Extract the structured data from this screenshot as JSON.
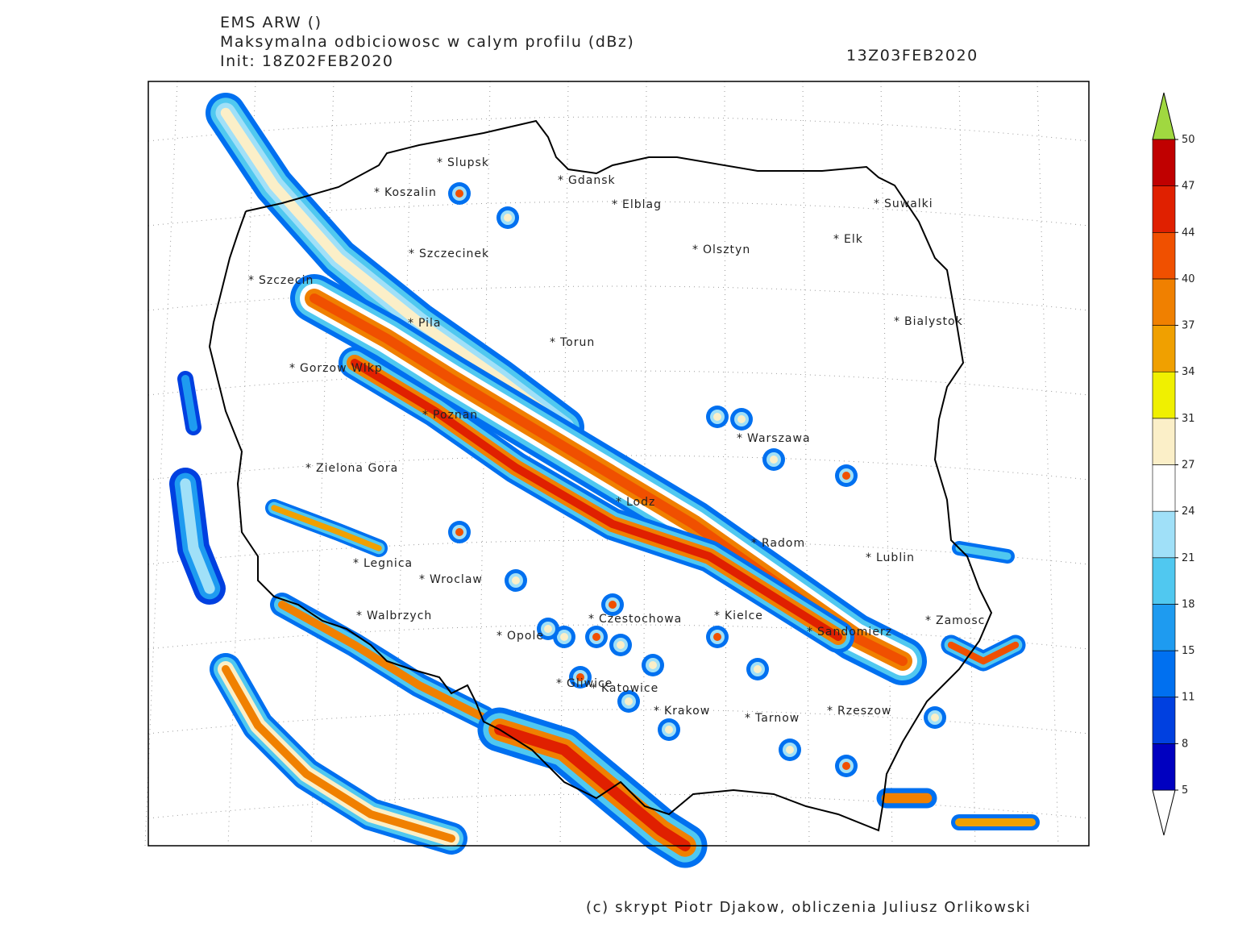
{
  "header": {
    "lines": [
      "EMS ARW ()",
      "Maksymalna odbiciowosc w calym profilu (dBz)",
      "Init: 18Z02FEB2020"
    ],
    "valid_time": "13Z03FEB2020"
  },
  "map": {
    "cities": [
      "Slupsk",
      "Koszalin",
      "Gdansk",
      "Elblag",
      "Suwalki",
      "Elk",
      "Olsztyn",
      "Szczecinek",
      "Szczecin",
      "Pila",
      "Torun",
      "Bialystok",
      "Gorzow Wlkp",
      "Poznan",
      "Warszawa",
      "Zielona Gora",
      "Lodz",
      "Radom",
      "Lublin",
      "Legnica",
      "Wroclaw",
      "Walbrzych",
      "Czestochowa",
      "Kielce",
      "Zamosc",
      "Sandomierz",
      "Opole",
      "Gliwice",
      "Katowice",
      "Krakow",
      "Tarnow",
      "Rzeszow"
    ]
  },
  "colorbar": {
    "levels": [
      5,
      8,
      11,
      15,
      18,
      21,
      24,
      27,
      31,
      34,
      37,
      40,
      44,
      47,
      50
    ],
    "colors": [
      "#0000c0",
      "#0040e0",
      "#0070f0",
      "#1e9bf0",
      "#50c8f0",
      "#a0e0f8",
      "#ffffff",
      "#fbefc8",
      "#f0f000",
      "#f0a000",
      "#f08000",
      "#f05000",
      "#e02000",
      "#c00000"
    ],
    "over_color": "#a0d840",
    "under_color": "#ffffff"
  },
  "footer": "(c) skrypt Piotr Djakow, obliczenia Juliusz Orlikowski"
}
